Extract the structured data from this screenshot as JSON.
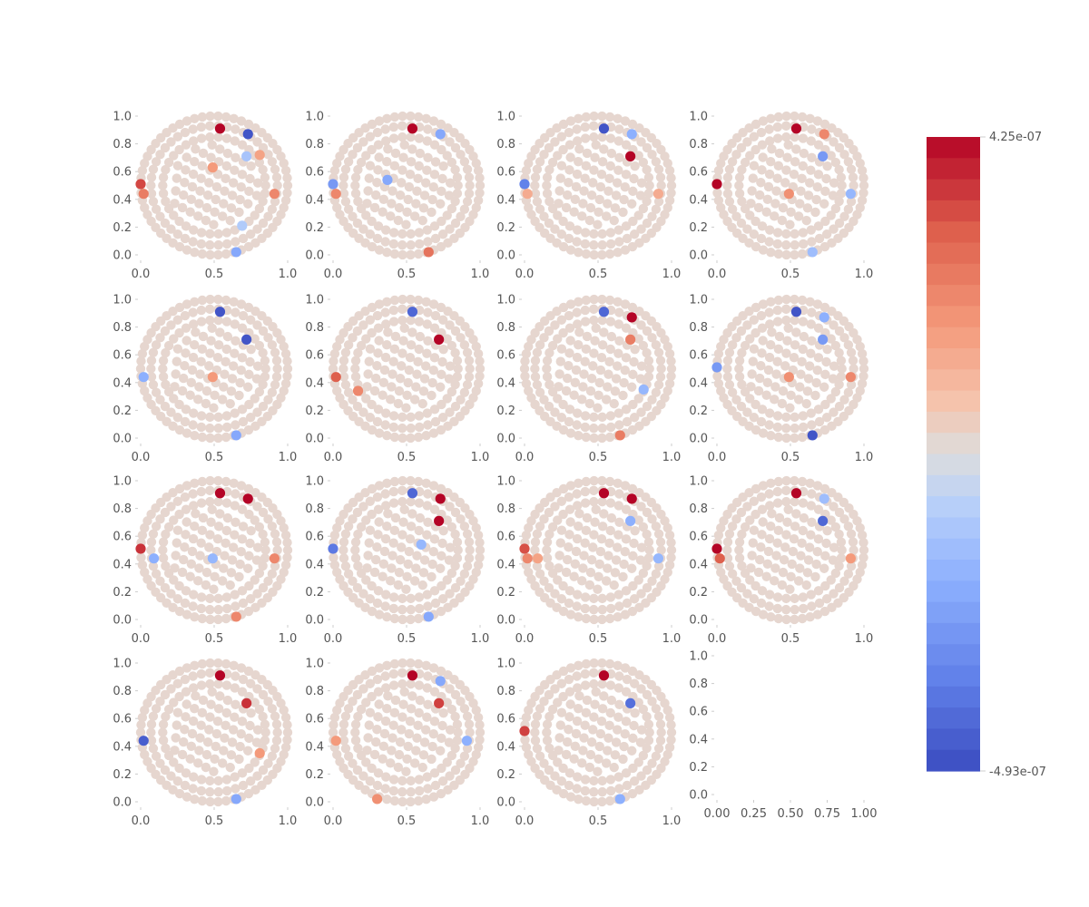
{
  "chart_data": {
    "type": "scatter",
    "title": "",
    "xlabel": "",
    "ylabel": "",
    "grid": false,
    "layout": {
      "rows": 4,
      "cols": 4,
      "panel_count": 15,
      "last_cell_empty": true
    },
    "panel_xticks": [
      "0.0",
      "0.5",
      "1.0"
    ],
    "panel_yticks": [
      "0.0",
      "0.2",
      "0.4",
      "0.6",
      "0.8",
      "1.0"
    ],
    "empty_cell_xticks": [
      "0.00",
      "0.25",
      "0.50",
      "0.75",
      "1.00"
    ],
    "empty_cell_yticks": [
      "0.0",
      "0.2",
      "0.4",
      "0.6",
      "0.8",
      "1.0"
    ],
    "xlim": [
      0,
      1
    ],
    "ylim": [
      0,
      1
    ],
    "colorbar": {
      "cmap": "coolwarm",
      "max_label": "4.25e-07",
      "min_label": "-4.93e-07",
      "max": 4.25e-07,
      "min": -4.93e-07,
      "levels": 30,
      "placement": "right"
    },
    "dot_color_default": "#e6d6cf",
    "sensor_layout": "filled disc of electrode positions (concentric rings + diagonal rows), same positions in every panel",
    "panels": [
      {
        "id": 1,
        "highlights": [
          {
            "x": 0.54,
            "y": 0.91,
            "v": 1.0
          },
          {
            "x": 0.73,
            "y": 0.87,
            "v": -0.95
          },
          {
            "x": 0.72,
            "y": 0.71,
            "v": -0.25
          },
          {
            "x": 0.49,
            "y": 0.63,
            "v": 0.4
          },
          {
            "x": 0.81,
            "y": 0.72,
            "v": 0.35
          },
          {
            "x": 0.91,
            "y": 0.44,
            "v": 0.5
          },
          {
            "x": 0.0,
            "y": 0.51,
            "v": 0.78
          },
          {
            "x": 0.02,
            "y": 0.44,
            "v": 0.55
          },
          {
            "x": 0.69,
            "y": 0.21,
            "v": -0.2
          },
          {
            "x": 0.65,
            "y": 0.02,
            "v": -0.45
          }
        ]
      },
      {
        "id": 2,
        "highlights": [
          {
            "x": 0.54,
            "y": 0.91,
            "v": 1.0
          },
          {
            "x": 0.73,
            "y": 0.87,
            "v": -0.45
          },
          {
            "x": 0.37,
            "y": 0.54,
            "v": -0.45
          },
          {
            "x": 0.0,
            "y": 0.51,
            "v": -0.55
          },
          {
            "x": 0.02,
            "y": 0.44,
            "v": 0.5
          },
          {
            "x": 0.65,
            "y": 0.02,
            "v": 0.6
          }
        ]
      },
      {
        "id": 3,
        "highlights": [
          {
            "x": 0.54,
            "y": 0.91,
            "v": -0.95
          },
          {
            "x": 0.73,
            "y": 0.87,
            "v": -0.4
          },
          {
            "x": 0.72,
            "y": 0.71,
            "v": 1.0
          },
          {
            "x": 0.0,
            "y": 0.51,
            "v": -0.7
          },
          {
            "x": 0.02,
            "y": 0.44,
            "v": 0.3
          },
          {
            "x": 0.91,
            "y": 0.44,
            "v": 0.3
          }
        ]
      },
      {
        "id": 4,
        "highlights": [
          {
            "x": 0.54,
            "y": 0.91,
            "v": 1.0
          },
          {
            "x": 0.73,
            "y": 0.87,
            "v": 0.5
          },
          {
            "x": 0.72,
            "y": 0.71,
            "v": -0.55
          },
          {
            "x": 0.49,
            "y": 0.44,
            "v": 0.45
          },
          {
            "x": 0.91,
            "y": 0.44,
            "v": -0.35
          },
          {
            "x": 0.0,
            "y": 0.51,
            "v": 1.0
          },
          {
            "x": 0.65,
            "y": 0.02,
            "v": -0.3
          }
        ]
      },
      {
        "id": 5,
        "highlights": [
          {
            "x": 0.54,
            "y": 0.91,
            "v": -0.95
          },
          {
            "x": 0.72,
            "y": 0.71,
            "v": -0.95
          },
          {
            "x": 0.49,
            "y": 0.44,
            "v": 0.4
          },
          {
            "x": 0.02,
            "y": 0.44,
            "v": -0.4
          },
          {
            "x": 0.65,
            "y": 0.02,
            "v": -0.45
          }
        ]
      },
      {
        "id": 6,
        "highlights": [
          {
            "x": 0.54,
            "y": 0.91,
            "v": -0.85
          },
          {
            "x": 0.72,
            "y": 0.71,
            "v": 1.0
          },
          {
            "x": 0.02,
            "y": 0.44,
            "v": 0.7
          },
          {
            "x": 0.17,
            "y": 0.34,
            "v": 0.5
          }
        ]
      },
      {
        "id": 7,
        "highlights": [
          {
            "x": 0.54,
            "y": 0.91,
            "v": -0.85
          },
          {
            "x": 0.73,
            "y": 0.87,
            "v": 1.0
          },
          {
            "x": 0.72,
            "y": 0.71,
            "v": 0.55
          },
          {
            "x": 0.81,
            "y": 0.35,
            "v": -0.35
          },
          {
            "x": 0.65,
            "y": 0.02,
            "v": 0.55
          }
        ]
      },
      {
        "id": 8,
        "highlights": [
          {
            "x": 0.54,
            "y": 0.91,
            "v": -0.95
          },
          {
            "x": 0.73,
            "y": 0.87,
            "v": -0.4
          },
          {
            "x": 0.72,
            "y": 0.71,
            "v": -0.55
          },
          {
            "x": 0.49,
            "y": 0.44,
            "v": 0.45
          },
          {
            "x": 0.91,
            "y": 0.44,
            "v": 0.5
          },
          {
            "x": 0.0,
            "y": 0.51,
            "v": -0.55
          },
          {
            "x": 0.65,
            "y": 0.02,
            "v": -0.95
          }
        ]
      },
      {
        "id": 9,
        "highlights": [
          {
            "x": 0.54,
            "y": 0.91,
            "v": 1.0
          },
          {
            "x": 0.73,
            "y": 0.87,
            "v": 1.0
          },
          {
            "x": 0.0,
            "y": 0.51,
            "v": 0.85
          },
          {
            "x": 0.09,
            "y": 0.44,
            "v": -0.4
          },
          {
            "x": 0.49,
            "y": 0.44,
            "v": -0.35
          },
          {
            "x": 0.91,
            "y": 0.44,
            "v": 0.5
          },
          {
            "x": 0.65,
            "y": 0.02,
            "v": 0.5
          }
        ]
      },
      {
        "id": 10,
        "highlights": [
          {
            "x": 0.54,
            "y": 0.91,
            "v": -0.85
          },
          {
            "x": 0.73,
            "y": 0.87,
            "v": 1.0
          },
          {
            "x": 0.72,
            "y": 0.71,
            "v": 1.0
          },
          {
            "x": 0.0,
            "y": 0.51,
            "v": -0.75
          },
          {
            "x": 0.6,
            "y": 0.54,
            "v": -0.35
          },
          {
            "x": 0.65,
            "y": 0.02,
            "v": -0.45
          }
        ]
      },
      {
        "id": 11,
        "highlights": [
          {
            "x": 0.54,
            "y": 0.91,
            "v": 1.0
          },
          {
            "x": 0.73,
            "y": 0.87,
            "v": 1.0
          },
          {
            "x": 0.72,
            "y": 0.71,
            "v": -0.4
          },
          {
            "x": 0.0,
            "y": 0.51,
            "v": 0.75
          },
          {
            "x": 0.02,
            "y": 0.44,
            "v": 0.5
          },
          {
            "x": 0.09,
            "y": 0.44,
            "v": 0.35
          },
          {
            "x": 0.91,
            "y": 0.44,
            "v": -0.35
          }
        ]
      },
      {
        "id": 12,
        "highlights": [
          {
            "x": 0.54,
            "y": 0.91,
            "v": 1.0
          },
          {
            "x": 0.72,
            "y": 0.71,
            "v": -0.85
          },
          {
            "x": 0.73,
            "y": 0.87,
            "v": -0.3
          },
          {
            "x": 0.0,
            "y": 0.51,
            "v": 1.0
          },
          {
            "x": 0.02,
            "y": 0.44,
            "v": 0.7
          },
          {
            "x": 0.91,
            "y": 0.44,
            "v": 0.4
          }
        ]
      },
      {
        "id": 13,
        "highlights": [
          {
            "x": 0.54,
            "y": 0.91,
            "v": 1.0
          },
          {
            "x": 0.72,
            "y": 0.71,
            "v": 0.85
          },
          {
            "x": 0.02,
            "y": 0.44,
            "v": -0.9
          },
          {
            "x": 0.65,
            "y": 0.02,
            "v": -0.45
          },
          {
            "x": 0.81,
            "y": 0.35,
            "v": 0.4
          }
        ]
      },
      {
        "id": 14,
        "highlights": [
          {
            "x": 0.54,
            "y": 0.91,
            "v": 1.0
          },
          {
            "x": 0.73,
            "y": 0.87,
            "v": -0.45
          },
          {
            "x": 0.72,
            "y": 0.71,
            "v": 0.8
          },
          {
            "x": 0.91,
            "y": 0.44,
            "v": -0.4
          },
          {
            "x": 0.02,
            "y": 0.44,
            "v": 0.4
          },
          {
            "x": 0.3,
            "y": 0.02,
            "v": 0.45
          }
        ]
      },
      {
        "id": 15,
        "highlights": [
          {
            "x": 0.54,
            "y": 0.91,
            "v": 1.0
          },
          {
            "x": 0.72,
            "y": 0.71,
            "v": -0.8
          },
          {
            "x": 0.0,
            "y": 0.51,
            "v": 0.8
          },
          {
            "x": 0.65,
            "y": 0.02,
            "v": -0.4
          }
        ]
      }
    ]
  }
}
